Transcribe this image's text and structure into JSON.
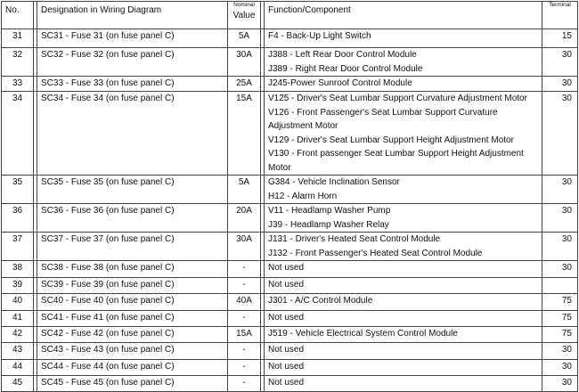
{
  "header": {
    "no": "No.",
    "designation": "Designation in Wiring Diagram",
    "nominal_small": "Nominal",
    "nominal_value": "Value",
    "function": "Function/Component",
    "terminal": "Terminal"
  },
  "rows": [
    {
      "no": "31",
      "designation": "SC31 - Fuse 31 (on fuse panel C)",
      "value": "5A",
      "function": [
        "F4 - Back-Up Light Switch"
      ],
      "terminal": "15"
    },
    {
      "no": "32",
      "designation": "SC32 - Fuse 32 (on fuse panel C)",
      "value": "30A",
      "function": [
        "J388 - Left Rear Door Control Module",
        "J389 - Right Rear Door Control Module"
      ],
      "terminal": "30"
    },
    {
      "no": "33",
      "designation": "SC33 - Fuse 33 (on fuse panel C)",
      "value": "25A",
      "function": [
        "J245-Power Sunroof Control Module"
      ],
      "terminal": "30"
    },
    {
      "no": "34",
      "designation": "SC34 - Fuse 34 (on fuse panel C)",
      "value": "15A",
      "function": [
        "V125 - Driver's Seat Lumbar Support Curvature Adjustment Motor",
        "V126 - Front Passenger's Seat Lumbar Support Curvature Adjustment Motor",
        "V129 - Driver's Seat Lumbar Support Height Adjustment Motor",
        "V130 - Front passenger Seat Lumbar Support Height Adjustment Motor"
      ],
      "terminal": "30"
    },
    {
      "no": "35",
      "designation": "SC35 - Fuse 35 (on fuse panel C)",
      "value": "5A",
      "function": [
        "G384 - Vehicle Inclination Sensor",
        "H12 - Alarm Horn"
      ],
      "terminal": "30"
    },
    {
      "no": "36",
      "designation": "SC36 - Fuse 36 (on fuse panel C)",
      "value": "20A",
      "function": [
        "V11 - Headlamp Washer Pump",
        "J39 - Headlamp Washer Relay"
      ],
      "terminal": "30"
    },
    {
      "no": "37",
      "designation": "SC37 - Fuse 37 (on fuse panel C)",
      "value": "30A",
      "function": [
        "J131 - Driver's Heated Seat Control Module",
        "J132 - Front Passenger's Heated Seat Control Module"
      ],
      "terminal": "30"
    },
    {
      "no": "38",
      "designation": "SC38 - Fuse 38 (on fuse panel C)",
      "value": "-",
      "function": [
        "Not used"
      ],
      "terminal": "30"
    },
    {
      "no": "39",
      "designation": "SC39 - Fuse 39 (on fuse panel C)",
      "value": "-",
      "function": [
        "Not used"
      ],
      "terminal": ""
    },
    {
      "no": "40",
      "designation": "SC40 - Fuse 40 (on fuse panel C)",
      "value": "40A",
      "function": [
        "J301 - A/C Control Module"
      ],
      "terminal": "75"
    },
    {
      "no": "41",
      "designation": "SC41 - Fuse 41 (on fuse panel C)",
      "value": "-",
      "function": [
        "Not used"
      ],
      "terminal": "75"
    },
    {
      "no": "42",
      "designation": "SC42 - Fuse 42 (on fuse panel C)",
      "value": "15A",
      "function": [
        "J519 - Vehicle Electrical System Control Module"
      ],
      "terminal": "75"
    },
    {
      "no": "43",
      "designation": "SC43 - Fuse 43 (on fuse panel C)",
      "value": "-",
      "function": [
        "Not used"
      ],
      "terminal": "30"
    },
    {
      "no": "44",
      "designation": "SC44 - Fuse 44 (on fuse panel C)",
      "value": "-",
      "function": [
        "Not used"
      ],
      "terminal": "30"
    },
    {
      "no": "45",
      "designation": "SC45 - Fuse 45 (on fuse panel C)",
      "value": "-",
      "function": [
        "Not used"
      ],
      "terminal": "30"
    }
  ]
}
